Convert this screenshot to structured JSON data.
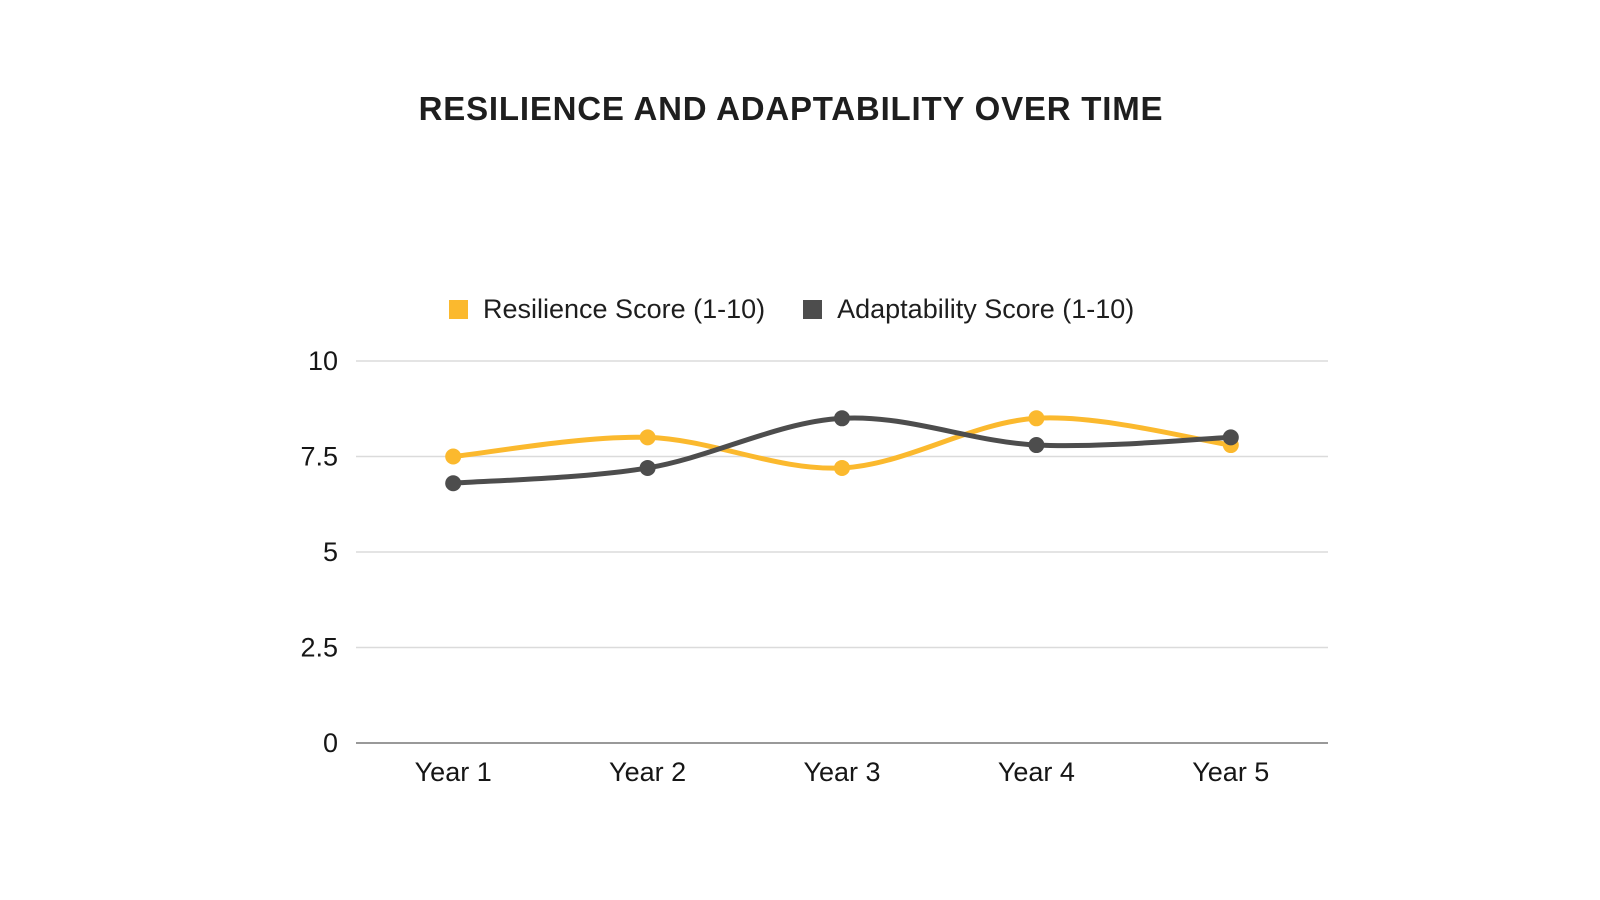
{
  "chart_data": {
    "type": "line",
    "title": "RESILIENCE AND ADAPTABILITY OVER TIME",
    "categories": [
      "Year 1",
      "Year 2",
      "Year 3",
      "Year 4",
      "Year 5"
    ],
    "series": [
      {
        "name": "Resilience Score (1-10)",
        "color": "#fbb92e",
        "values": [
          7.5,
          8.0,
          7.2,
          8.5,
          7.8
        ]
      },
      {
        "name": "Adaptability Score (1-10)",
        "color": "#4d4d4d",
        "values": [
          6.8,
          7.2,
          8.5,
          7.8,
          8.0
        ]
      }
    ],
    "xlabel": "",
    "ylabel": "",
    "ylim": [
      0,
      10
    ],
    "yticks": [
      0,
      2.5,
      5,
      7.5,
      10
    ],
    "grid": "horizontal",
    "legend_position": "top",
    "line_style": "smooth",
    "marker": "circle"
  },
  "colors": {
    "gridline": "#dbdbdb",
    "axis_line": "#999999",
    "text": "#161616",
    "title": "#1e1e1e"
  }
}
